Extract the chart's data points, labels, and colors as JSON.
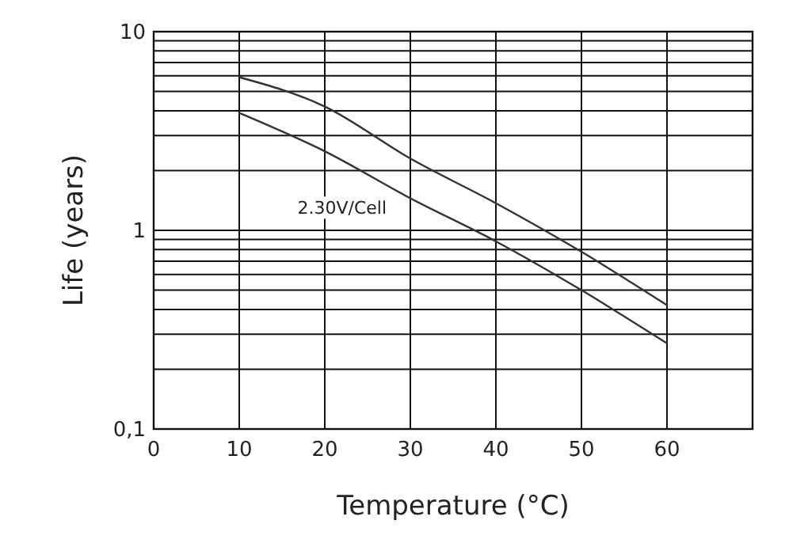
{
  "chart_data": {
    "type": "line",
    "xlabel": "Temperature (°C)",
    "ylabel": "Life (years)",
    "x": [
      10,
      20,
      30,
      40,
      50,
      60
    ],
    "series": [
      {
        "color": "#333333",
        "values": [
          5.9,
          4.2,
          2.3,
          1.37,
          0.78,
          0.42
        ]
      },
      {
        "color": "#333333",
        "values": [
          3.9,
          2.5,
          1.45,
          0.88,
          0.5,
          0.27
        ]
      }
    ],
    "xlim": [
      0,
      70
    ],
    "xticks": [
      0,
      10,
      20,
      30,
      40,
      50,
      60
    ],
    "ylim": [
      0.1,
      10
    ],
    "yticks": [
      {
        "value": 0.1,
        "label": "0,1"
      },
      {
        "value": 0.2,
        "label": null
      },
      {
        "value": 0.3,
        "label": null
      },
      {
        "value": 0.4,
        "label": null
      },
      {
        "value": 0.5,
        "label": null
      },
      {
        "value": 0.6,
        "label": null
      },
      {
        "value": 0.7,
        "label": null
      },
      {
        "value": 0.8,
        "label": null
      },
      {
        "value": 0.9,
        "label": null
      },
      1,
      {
        "value": 2,
        "label": null
      },
      {
        "value": 3,
        "label": null
      },
      {
        "value": 4,
        "label": null
      },
      {
        "value": 5,
        "label": null
      },
      {
        "value": 6,
        "label": null
      },
      {
        "value": 7,
        "label": null
      },
      {
        "value": 8,
        "label": null
      },
      {
        "value": 9,
        "label": null
      },
      10
    ],
    "log": true,
    "grid": true,
    "marker": "none",
    "line_style": "solid",
    "annotations": [
      "2.30V/Cell"
    ]
  }
}
